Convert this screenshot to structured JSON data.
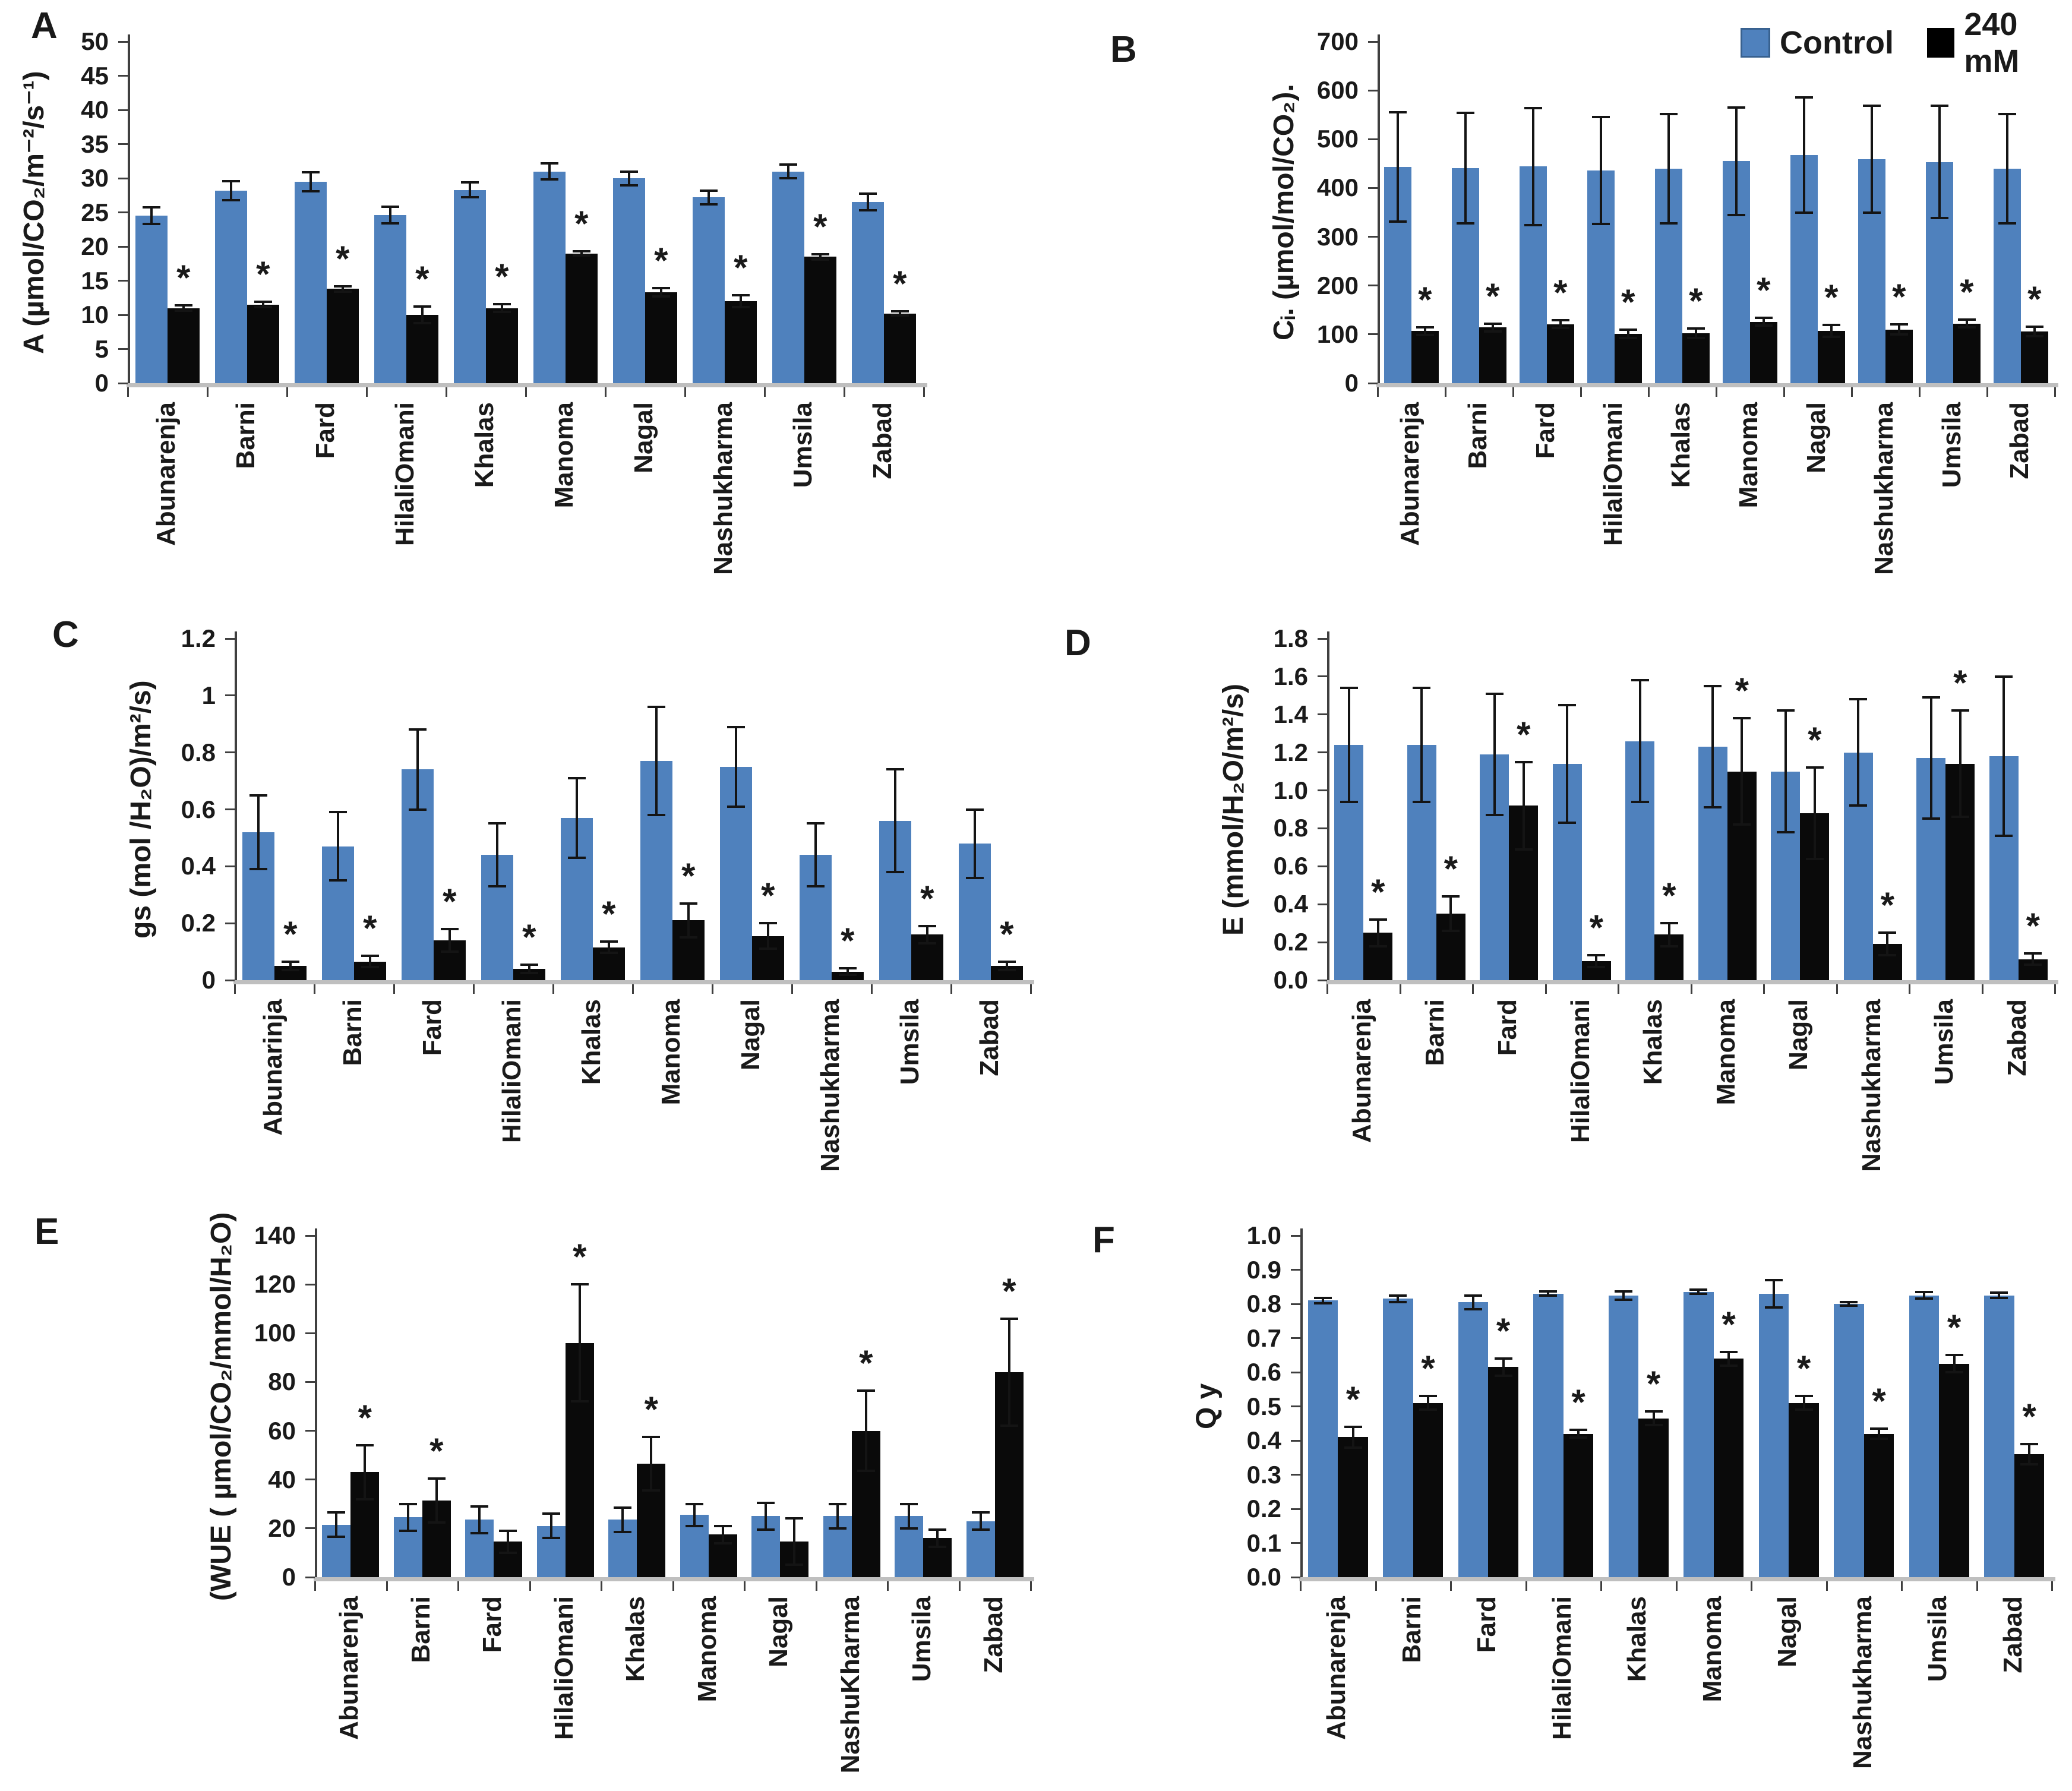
{
  "figure": {
    "background": "#ffffff",
    "legend": {
      "position": "top-right",
      "items": [
        {
          "label": "Control",
          "color": "#4f81bd"
        },
        {
          "label": "240 mM",
          "color": "#000000"
        }
      ]
    }
  },
  "chart_data": [
    {
      "panel": "A",
      "type": "bar",
      "ylabel": "A (µmol/CO₂/m⁻²/s⁻¹)",
      "ylim": [
        0,
        50
      ],
      "yticks": [
        0,
        5,
        10,
        15,
        20,
        25,
        30,
        35,
        40,
        45,
        50
      ],
      "ytick_labels": [
        "0",
        "5",
        "10",
        "15",
        "20",
        "25",
        "30",
        "35",
        "40",
        "45",
        "50"
      ],
      "grid": false,
      "categories": [
        "Abunarenja",
        "Barni",
        "Fard",
        "HilaliOmani",
        "Khalas",
        "Manoma",
        "Nagal",
        "Nashukharma",
        "Umsila",
        "Zabad"
      ],
      "series": [
        {
          "name": "Control",
          "color": "#4f81bd",
          "values": [
            24.5,
            28.2,
            29.5,
            24.6,
            28.3,
            31.0,
            30.0,
            27.2,
            31.0,
            26.5
          ],
          "errors": [
            1.2,
            1.4,
            1.4,
            1.2,
            1.1,
            1.2,
            1.0,
            1.0,
            1.0,
            1.2
          ]
        },
        {
          "name": "240 mM",
          "color": "#0a0a0a",
          "values": [
            11.0,
            11.5,
            13.8,
            10.0,
            11.0,
            19.0,
            13.3,
            12.0,
            18.5,
            10.2
          ],
          "errors": [
            0.4,
            0.4,
            0.4,
            1.2,
            0.6,
            0.3,
            0.6,
            0.9,
            0.4,
            0.3
          ],
          "sig_stars": [
            true,
            true,
            true,
            true,
            true,
            true,
            true,
            true,
            true,
            true
          ]
        }
      ]
    },
    {
      "panel": "B",
      "type": "bar",
      "ylabel": "Cᵢ. (µmol/mol/CO₂).",
      "ylim": [
        0,
        700
      ],
      "yticks": [
        0,
        100,
        200,
        300,
        400,
        500,
        600,
        700
      ],
      "ytick_labels": [
        "0",
        "100",
        "200",
        "300",
        "400",
        "500",
        "600",
        "700"
      ],
      "grid": false,
      "categories": [
        "Abunarenja",
        "Barni",
        "Fard",
        "HilaliOmani",
        "Khalas",
        "Manoma",
        "Nagal",
        "Nashukharma",
        "Umsila",
        "Zabad"
      ],
      "series": [
        {
          "name": "Control",
          "color": "#4f81bd",
          "values": [
            443,
            441,
            444,
            436,
            440,
            455,
            468,
            459,
            453,
            440
          ],
          "errors": [
            112,
            113,
            120,
            110,
            112,
            110,
            118,
            110,
            115,
            112
          ]
        },
        {
          "name": "240 mM",
          "color": "#0a0a0a",
          "values": [
            107,
            114,
            121,
            101,
            102,
            126,
            107,
            110,
            122,
            106
          ],
          "errors": [
            8,
            8,
            8,
            8,
            10,
            8,
            12,
            10,
            8,
            10
          ],
          "sig_stars": [
            true,
            true,
            true,
            true,
            true,
            true,
            true,
            true,
            true,
            true
          ]
        }
      ]
    },
    {
      "panel": "C",
      "type": "bar",
      "ylabel": "gs (mol /H₂O)/m²/s)",
      "ylim": [
        0,
        1.2
      ],
      "yticks": [
        0,
        0.2,
        0.4,
        0.6,
        0.8,
        1,
        1.2
      ],
      "ytick_labels": [
        "0",
        "0.2",
        "0.4",
        "0.6",
        "0.8",
        "1",
        "1.2"
      ],
      "grid": false,
      "categories": [
        "Abunarinja",
        "Barni",
        "Fard",
        "HilaliOmani",
        "Khalas",
        "Manoma",
        "Nagal",
        "Nashukharma",
        "Umsila",
        "Zabad"
      ],
      "series": [
        {
          "name": "Control",
          "color": "#4f81bd",
          "values": [
            0.52,
            0.47,
            0.74,
            0.44,
            0.57,
            0.77,
            0.75,
            0.44,
            0.56,
            0.48
          ],
          "errors": [
            0.13,
            0.12,
            0.14,
            0.11,
            0.14,
            0.19,
            0.14,
            0.11,
            0.18,
            0.12
          ]
        },
        {
          "name": "240 mM",
          "color": "#0a0a0a",
          "values": [
            0.05,
            0.065,
            0.14,
            0.04,
            0.115,
            0.21,
            0.155,
            0.03,
            0.16,
            0.05
          ],
          "errors": [
            0.015,
            0.02,
            0.04,
            0.015,
            0.02,
            0.06,
            0.045,
            0.012,
            0.03,
            0.015
          ],
          "sig_stars": [
            true,
            true,
            true,
            true,
            true,
            true,
            true,
            true,
            true,
            true
          ]
        }
      ]
    },
    {
      "panel": "D",
      "type": "bar",
      "ylabel": "E (mmol/H₂O/m²/s)",
      "ylim": [
        0,
        1.8
      ],
      "yticks": [
        0,
        0.2,
        0.4,
        0.6,
        0.8,
        1.0,
        1.2,
        1.4,
        1.6,
        1.8
      ],
      "ytick_labels": [
        "0.0",
        "0.2",
        "0.4",
        "0.6",
        "0.8",
        "1.0",
        "1.2",
        "1.4",
        "1.6",
        "1.8"
      ],
      "grid": false,
      "categories": [
        "Abunarenja",
        "Barni",
        "Fard",
        "HilaliOmani",
        "Khalas",
        "Manoma",
        "Nagal",
        "Nashukharma",
        "Umsila",
        "Zabad"
      ],
      "series": [
        {
          "name": "Control",
          "color": "#4f81bd",
          "values": [
            1.24,
            1.24,
            1.19,
            1.14,
            1.26,
            1.23,
            1.1,
            1.2,
            1.17,
            1.18
          ],
          "errors": [
            0.3,
            0.3,
            0.32,
            0.31,
            0.32,
            0.32,
            0.32,
            0.28,
            0.32,
            0.42
          ]
        },
        {
          "name": "240 mM",
          "color": "#0a0a0a",
          "values": [
            0.25,
            0.35,
            0.92,
            0.1,
            0.24,
            1.1,
            0.88,
            0.19,
            1.14,
            0.11
          ],
          "errors": [
            0.07,
            0.09,
            0.23,
            0.03,
            0.06,
            0.28,
            0.24,
            0.06,
            0.28,
            0.03
          ],
          "sig_stars": [
            true,
            true,
            true,
            true,
            true,
            true,
            true,
            true,
            true,
            true
          ]
        }
      ]
    },
    {
      "panel": "E",
      "type": "bar",
      "ylabel": "(WUE ( µmol/CO₂/mmol/H₂O)",
      "ylim": [
        0,
        140
      ],
      "yticks": [
        0,
        20,
        40,
        60,
        80,
        100,
        120,
        140
      ],
      "ytick_labels": [
        "0",
        "20",
        "40",
        "60",
        "80",
        "100",
        "120",
        "140"
      ],
      "grid": false,
      "categories": [
        "Abunarenja",
        "Barni",
        "Fard",
        "HilaliOmani",
        "Khalas",
        "Manoma",
        "Nagal",
        "NashuKharma",
        "Umsila",
        "Zabad"
      ],
      "series": [
        {
          "name": "Control",
          "color": "#4f81bd",
          "values": [
            21.5,
            24.5,
            23.5,
            21.0,
            23.5,
            25.5,
            25.0,
            25.0,
            25.0,
            23.0
          ],
          "errors": [
            5.0,
            5.5,
            5.5,
            5.0,
            5.0,
            4.5,
            5.5,
            5.0,
            5.0,
            3.5
          ]
        },
        {
          "name": "240 mM",
          "color": "#0a0a0a",
          "values": [
            43,
            31.5,
            14.5,
            96,
            46.5,
            17.5,
            14.5,
            60,
            16,
            84
          ],
          "errors": [
            11,
            9,
            4.5,
            24,
            11,
            3.5,
            9.5,
            16.5,
            3.5,
            22
          ],
          "sig_stars": [
            true,
            true,
            false,
            true,
            true,
            false,
            false,
            true,
            false,
            true
          ]
        }
      ]
    },
    {
      "panel": "F",
      "type": "bar",
      "ylabel": "Q y",
      "ylim": [
        0,
        1.0
      ],
      "yticks": [
        0,
        0.1,
        0.2,
        0.3,
        0.4,
        0.5,
        0.6,
        0.7,
        0.8,
        0.9,
        1.0
      ],
      "ytick_labels": [
        "0.0",
        "0.1",
        "0.2",
        "0.3",
        "0.4",
        "0.5",
        "0.6",
        "0.7",
        "0.8",
        "0.9",
        "1.0"
      ],
      "grid": false,
      "categories": [
        "Abunarenja",
        "Barni",
        "Fard",
        "HilaliOmani",
        "Khalas",
        "Manoma",
        "Nagal",
        "Nashukharma",
        "Umsila",
        "Zabad"
      ],
      "series": [
        {
          "name": "Control",
          "color": "#4f81bd",
          "values": [
            0.81,
            0.815,
            0.805,
            0.83,
            0.825,
            0.835,
            0.83,
            0.8,
            0.825,
            0.825
          ],
          "errors": [
            0.008,
            0.01,
            0.02,
            0.006,
            0.012,
            0.006,
            0.04,
            0.006,
            0.01,
            0.008
          ]
        },
        {
          "name": "240 mM",
          "color": "#0a0a0a",
          "values": [
            0.41,
            0.51,
            0.615,
            0.42,
            0.465,
            0.64,
            0.51,
            0.42,
            0.625,
            0.36
          ],
          "errors": [
            0.03,
            0.02,
            0.025,
            0.012,
            0.02,
            0.02,
            0.02,
            0.015,
            0.025,
            0.03
          ],
          "sig_stars": [
            true,
            true,
            true,
            true,
            true,
            true,
            true,
            true,
            true,
            true
          ]
        }
      ]
    }
  ]
}
